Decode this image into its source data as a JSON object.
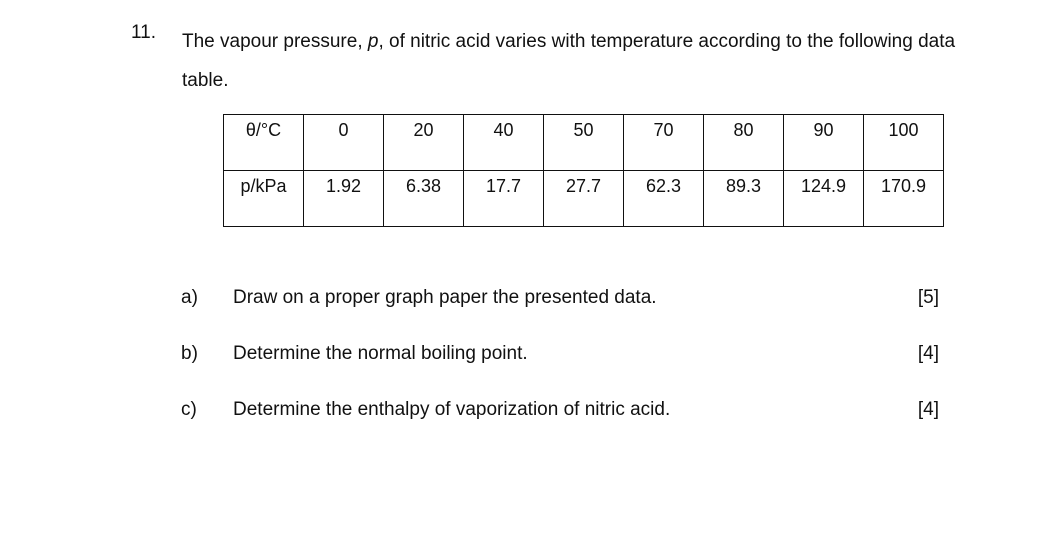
{
  "question": {
    "number": "11.",
    "intro_before": "The vapour pressure, ",
    "intro_symbol": "p",
    "intro_after": ", of nitric acid varies with temperature according to the following data table."
  },
  "table": {
    "rows": [
      [
        "θ/°C",
        "0",
        "20",
        "40",
        "50",
        "70",
        "80",
        "90",
        "100"
      ],
      [
        "p/kPa",
        "1.92",
        "6.38",
        "17.7",
        "27.7",
        "62.3",
        "89.3",
        "124.9",
        "170.9"
      ]
    ]
  },
  "parts": [
    {
      "label": "a)",
      "text": "Draw on a proper graph paper the presented data.",
      "marks": "[5]"
    },
    {
      "label": "b)",
      "text": "Determine the normal boiling point.",
      "marks": "[4]"
    },
    {
      "label": "c)",
      "text": "Determine the enthalpy of vaporization of nitric acid.",
      "marks": "[4]"
    }
  ]
}
